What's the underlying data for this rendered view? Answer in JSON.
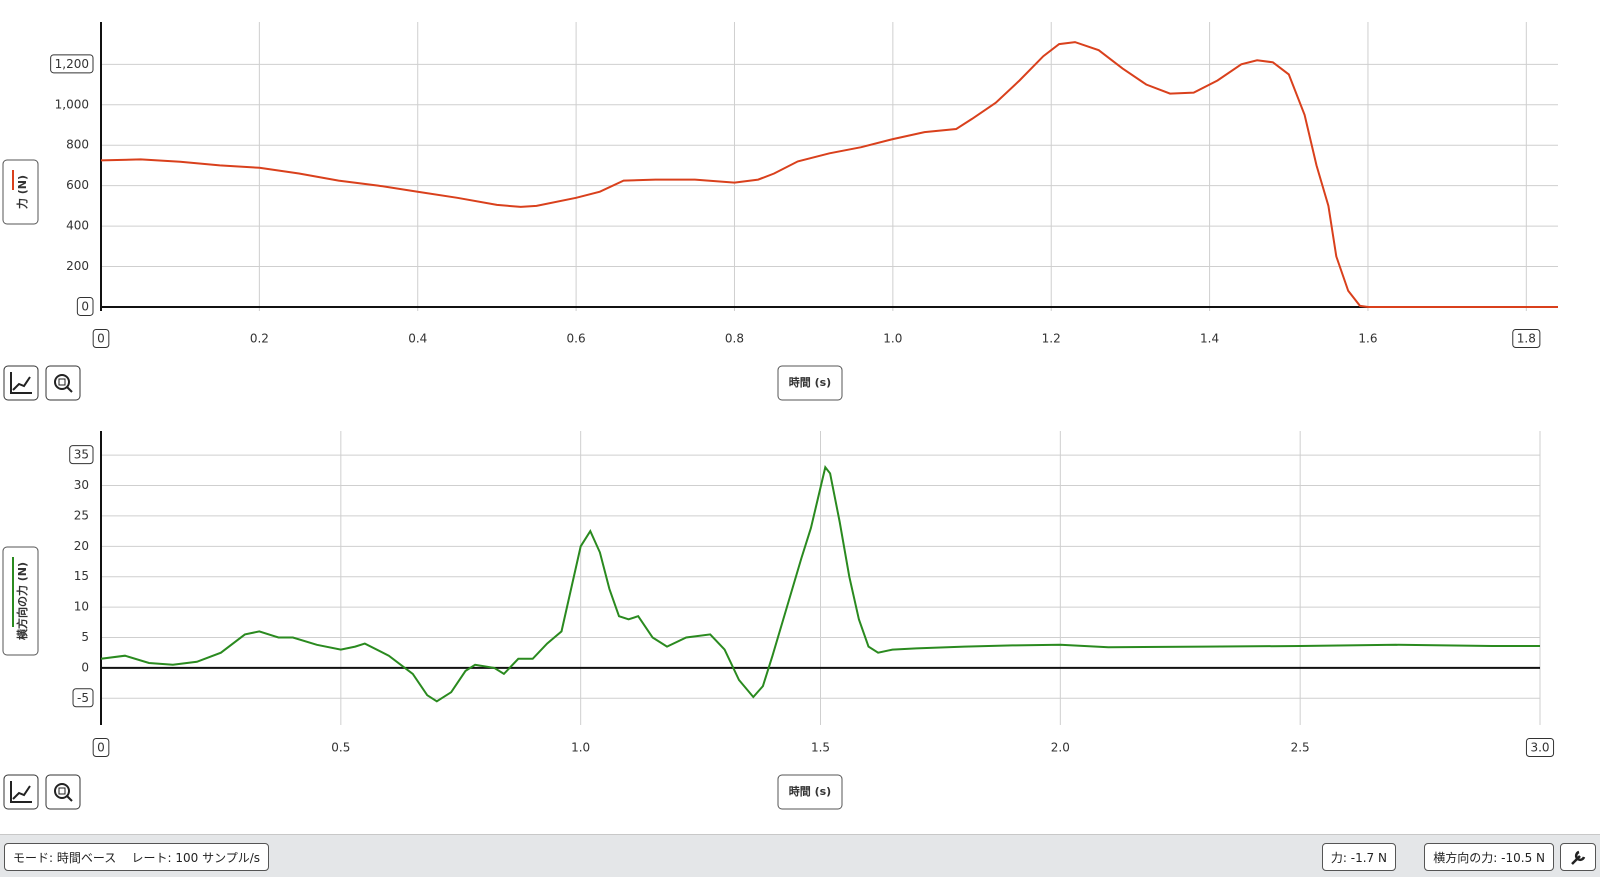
{
  "chart_data": [
    {
      "type": "line",
      "ylabel": "力 (N)",
      "xlabel": "時間 (s)",
      "x": [
        0,
        0.05,
        0.1,
        0.15,
        0.2,
        0.25,
        0.3,
        0.35,
        0.4,
        0.45,
        0.5,
        0.53,
        0.55,
        0.6,
        0.63,
        0.66,
        0.7,
        0.75,
        0.8,
        0.83,
        0.85,
        0.88,
        0.92,
        0.96,
        1.0,
        1.04,
        1.08,
        1.1,
        1.13,
        1.16,
        1.19,
        1.21,
        1.23,
        1.26,
        1.29,
        1.32,
        1.35,
        1.38,
        1.41,
        1.44,
        1.46,
        1.48,
        1.5,
        1.52,
        1.535,
        1.55,
        1.56,
        1.575,
        1.59,
        1.6,
        1.7,
        1.84
      ],
      "series": [
        {
          "color": "#d9401c",
          "values": [
            725,
            730,
            718,
            700,
            688,
            660,
            625,
            600,
            570,
            540,
            505,
            495,
            500,
            540,
            570,
            625,
            630,
            630,
            615,
            630,
            660,
            720,
            760,
            790,
            830,
            865,
            880,
            930,
            1010,
            1120,
            1240,
            1300,
            1310,
            1270,
            1180,
            1100,
            1055,
            1060,
            1120,
            1200,
            1220,
            1210,
            1150,
            950,
            700,
            500,
            250,
            80,
            5,
            0,
            0,
            0
          ]
        }
      ],
      "xlim": [
        0,
        1.84
      ],
      "ylim": [
        -20,
        1350
      ],
      "xticks": [
        0,
        0.2,
        0.4,
        0.6,
        0.8,
        {
          "value": 1,
          "label": "1.0"
        },
        1.2,
        1.4,
        1.6,
        1.8
      ],
      "yticks": [
        0,
        200,
        400,
        600,
        800,
        {
          "value": 1000,
          "label": "1,000"
        },
        {
          "value": 1200,
          "label": "1,200"
        }
      ],
      "grid": true
    },
    {
      "type": "line",
      "ylabel": "横方向の力 (N)",
      "xlabel": "時間 (s)",
      "x": [
        0,
        0.05,
        0.1,
        0.15,
        0.2,
        0.25,
        0.3,
        0.33,
        0.37,
        0.4,
        0.45,
        0.5,
        0.53,
        0.55,
        0.6,
        0.65,
        0.68,
        0.7,
        0.73,
        0.76,
        0.78,
        0.82,
        0.84,
        0.87,
        0.9,
        0.93,
        0.96,
        1.0,
        1.02,
        1.04,
        1.06,
        1.08,
        1.1,
        1.12,
        1.15,
        1.18,
        1.22,
        1.27,
        1.3,
        1.33,
        1.36,
        1.38,
        1.4,
        1.43,
        1.46,
        1.48,
        1.51,
        1.52,
        1.54,
        1.56,
        1.58,
        1.6,
        1.62,
        1.65,
        1.7,
        1.8,
        1.9,
        2.0,
        2.1,
        2.3,
        2.5,
        2.7,
        2.9,
        3.0
      ],
      "series": [
        {
          "color": "#2a8a1f",
          "values": [
            1.5,
            2,
            0.8,
            0.5,
            1,
            2.5,
            5.5,
            6,
            5,
            5,
            3.8,
            3,
            3.5,
            4,
            2,
            -1,
            -4.5,
            -5.5,
            -4,
            -0.5,
            0.5,
            0,
            -1,
            1.5,
            1.5,
            4,
            6,
            20,
            22.5,
            19,
            13,
            8.5,
            8,
            8.5,
            5,
            3.5,
            5,
            5.5,
            3,
            -2,
            -4.8,
            -3,
            2,
            10,
            18,
            23,
            33,
            32,
            24,
            15,
            8,
            3.5,
            2.5,
            3,
            3.2,
            3.5,
            3.7,
            3.8,
            3.4,
            3.5,
            3.6,
            3.8,
            3.6,
            3.6
          ]
        }
      ],
      "xlim": [
        0,
        3.0
      ],
      "ylim": [
        -9.4,
        37
      ],
      "xticks": [
        0,
        0.5,
        {
          "value": 1,
          "label": "1.0"
        },
        1.5,
        {
          "value": 2,
          "label": "2.0"
        },
        2.5,
        {
          "value": 3,
          "label": "3.0"
        }
      ],
      "yticks": [
        -5,
        0,
        5,
        10,
        15,
        20,
        25,
        30,
        35
      ],
      "grid": true
    }
  ],
  "status": {
    "mode": "モード: 時間ベース",
    "rate": "レート: 100 サンプル/s",
    "force": "力: -1.7 N",
    "lateral": "横方向の力: -10.5 N"
  }
}
